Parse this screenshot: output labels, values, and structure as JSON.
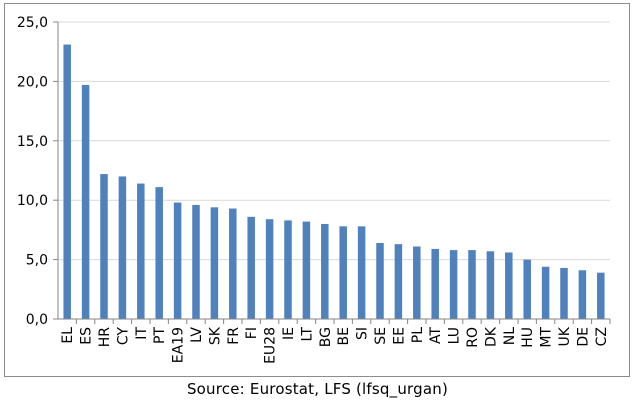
{
  "chart_data": {
    "type": "bar",
    "categories": [
      "EL",
      "ES",
      "HR",
      "CY",
      "IT",
      "PT",
      "EA19",
      "LV",
      "SK",
      "FR",
      "FI",
      "EU28",
      "IE",
      "LT",
      "BG",
      "BE",
      "SI",
      "SE",
      "EE",
      "PL",
      "AT",
      "LU",
      "RO",
      "DK",
      "NL",
      "HU",
      "MT",
      "UK",
      "DE",
      "CZ"
    ],
    "values": [
      23.1,
      19.7,
      12.2,
      12.0,
      11.4,
      11.1,
      9.8,
      9.6,
      9.4,
      9.3,
      8.6,
      8.4,
      8.3,
      8.2,
      8.0,
      7.8,
      7.8,
      6.4,
      6.3,
      6.1,
      5.9,
      5.8,
      5.8,
      5.7,
      5.6,
      5.0,
      4.4,
      4.3,
      4.1,
      3.9
    ],
    "ylim": [
      0,
      25
    ],
    "yticks": [
      0,
      5,
      10,
      15,
      20,
      25
    ],
    "ytick_labels": [
      "0,0",
      "5,0",
      "10,0",
      "15,0",
      "20,0",
      "25,0"
    ],
    "grid": true,
    "title": "",
    "xlabel": "",
    "ylabel": "",
    "bar_color": "#4f81bd",
    "grid_color": "#d9d9d9",
    "axis_color": "#868686"
  },
  "caption": "Source: Eurostat, LFS (lfsq_urgan)"
}
